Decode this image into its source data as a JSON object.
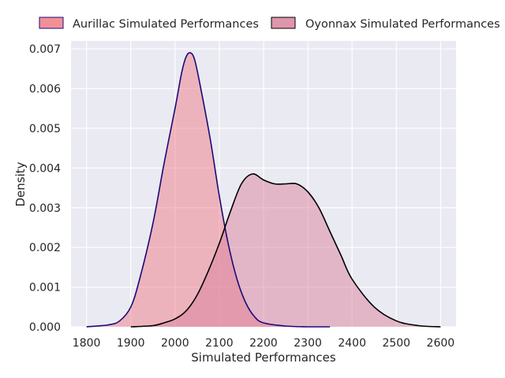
{
  "chart_data": {
    "type": "area",
    "xlabel": "Simulated Performances",
    "ylabel": "Density",
    "xlim": [
      1765,
      2635
    ],
    "ylim": [
      0,
      0.0072
    ],
    "x_ticks": [
      1800,
      1900,
      2000,
      2100,
      2200,
      2300,
      2400,
      2500,
      2600
    ],
    "x_tick_labels": [
      "1800",
      "1900",
      "2000",
      "2100",
      "2200",
      "2300",
      "2400",
      "2500",
      "2600"
    ],
    "y_ticks": [
      0,
      0.001,
      0.002,
      0.003,
      0.004,
      0.005,
      0.006,
      0.007
    ],
    "y_tick_labels": [
      "0.000",
      "0.001",
      "0.002",
      "0.003",
      "0.004",
      "0.005",
      "0.006",
      "0.007"
    ],
    "grid": true,
    "legend_placement": "top, outside plot",
    "series": [
      {
        "name": "Aurillac Simulated Performances",
        "fill": "#f07c86",
        "line": "#1a0a7a",
        "x": [
          1800,
          1850,
          1875,
          1900,
          1920,
          1950,
          1975,
          2000,
          2015,
          2025,
          2035,
          2045,
          2060,
          2080,
          2100,
          2120,
          2140,
          2160,
          2180,
          2200,
          2250,
          2300,
          2350
        ],
        "y": [
          0,
          5e-05,
          0.00015,
          0.0005,
          0.0012,
          0.0026,
          0.0041,
          0.0055,
          0.0064,
          0.0068,
          0.0069,
          0.0067,
          0.0059,
          0.0047,
          0.0033,
          0.0021,
          0.0012,
          0.0006,
          0.00025,
          0.0001,
          2e-05,
          0,
          0
        ]
      },
      {
        "name": "Oyonnax Simulated Performances",
        "fill": "#d9829c",
        "line": "#000000",
        "x": [
          1900,
          1950,
          1975,
          2000,
          2025,
          2050,
          2075,
          2100,
          2125,
          2150,
          2175,
          2200,
          2225,
          2250,
          2275,
          2300,
          2325,
          2350,
          2375,
          2400,
          2450,
          2500,
          2550,
          2600
        ],
        "y": [
          0,
          3e-05,
          0.0001,
          0.0002,
          0.0004,
          0.0008,
          0.0014,
          0.0021,
          0.0029,
          0.0036,
          0.00385,
          0.0037,
          0.0036,
          0.0036,
          0.0036,
          0.0034,
          0.003,
          0.0024,
          0.0018,
          0.0012,
          0.0005,
          0.00015,
          3e-05,
          0
        ]
      }
    ]
  }
}
